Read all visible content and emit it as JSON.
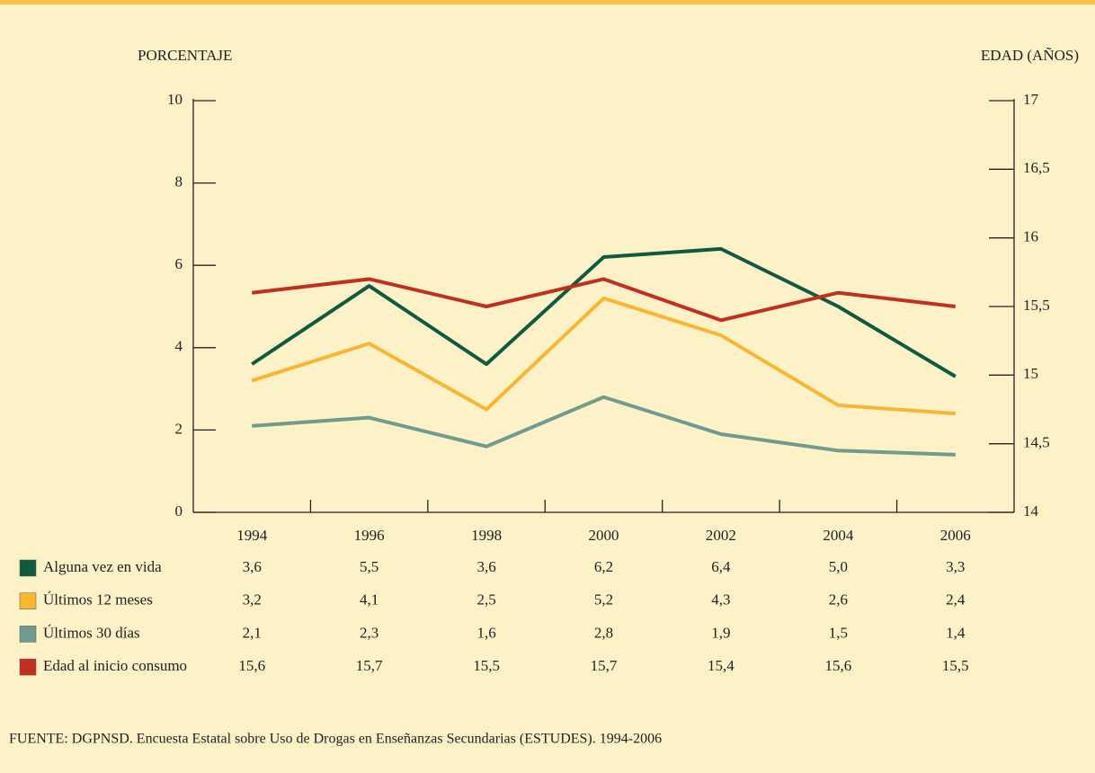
{
  "chart_data": {
    "type": "line",
    "y_axis_label": "PORCENTAJE",
    "y2_axis_label": "EDAD (AÑOS)",
    "source": "FUENTE: DGPNSD. Encuesta Estatal sobre Uso de Drogas en Enseñanzas Secundarias (ESTUDES). 1994-2006",
    "categories": [
      "1994",
      "1996",
      "1998",
      "2000",
      "2002",
      "2004",
      "2006"
    ],
    "ylim": [
      0,
      10
    ],
    "yticks": [
      0,
      2,
      4,
      6,
      8,
      10
    ],
    "y2lim": [
      14,
      17
    ],
    "y2ticks": [
      14,
      {
        "value": 14.5,
        "label": "14,5"
      },
      15,
      {
        "value": 15.5,
        "label": "15,5"
      },
      16,
      {
        "value": 16.5,
        "label": "16,5"
      },
      17
    ],
    "grid": false,
    "series": [
      {
        "name": "Alguna vez en vida",
        "color": "#0f5a40",
        "values": [
          3.6,
          5.5,
          3.6,
          6.2,
          6.4,
          5.0,
          3.3
        ],
        "value_labels": [
          "3,6",
          "5,5",
          "3,6",
          "6,2",
          "6,4",
          "5,0",
          "3,3"
        ]
      },
      {
        "name": "Últimos 12 meses",
        "color": "#f7b733",
        "values": [
          3.2,
          4.1,
          2.5,
          5.2,
          4.3,
          2.6,
          2.4
        ],
        "value_labels": [
          "3,2",
          "4,1",
          "2,5",
          "5,2",
          "4,3",
          "2,6",
          "2,4"
        ]
      },
      {
        "name": "Últimos 30 días",
        "color": "#6f9c8e",
        "values": [
          2.1,
          2.3,
          1.6,
          2.8,
          1.9,
          1.5,
          1.4
        ],
        "value_labels": [
          "2,1",
          "2,3",
          "1,6",
          "2,8",
          "1,9",
          "1,5",
          "1,4"
        ]
      },
      {
        "name": "Edad al inicio consumo",
        "color": "#c0301f",
        "axis": "y2",
        "values": [
          15.6,
          15.7,
          15.5,
          15.7,
          15.4,
          15.6,
          15.5
        ],
        "value_labels": [
          "15,6",
          "15,7",
          "15,5",
          "15,7",
          "15,4",
          "15,6",
          "15,5"
        ]
      }
    ]
  }
}
